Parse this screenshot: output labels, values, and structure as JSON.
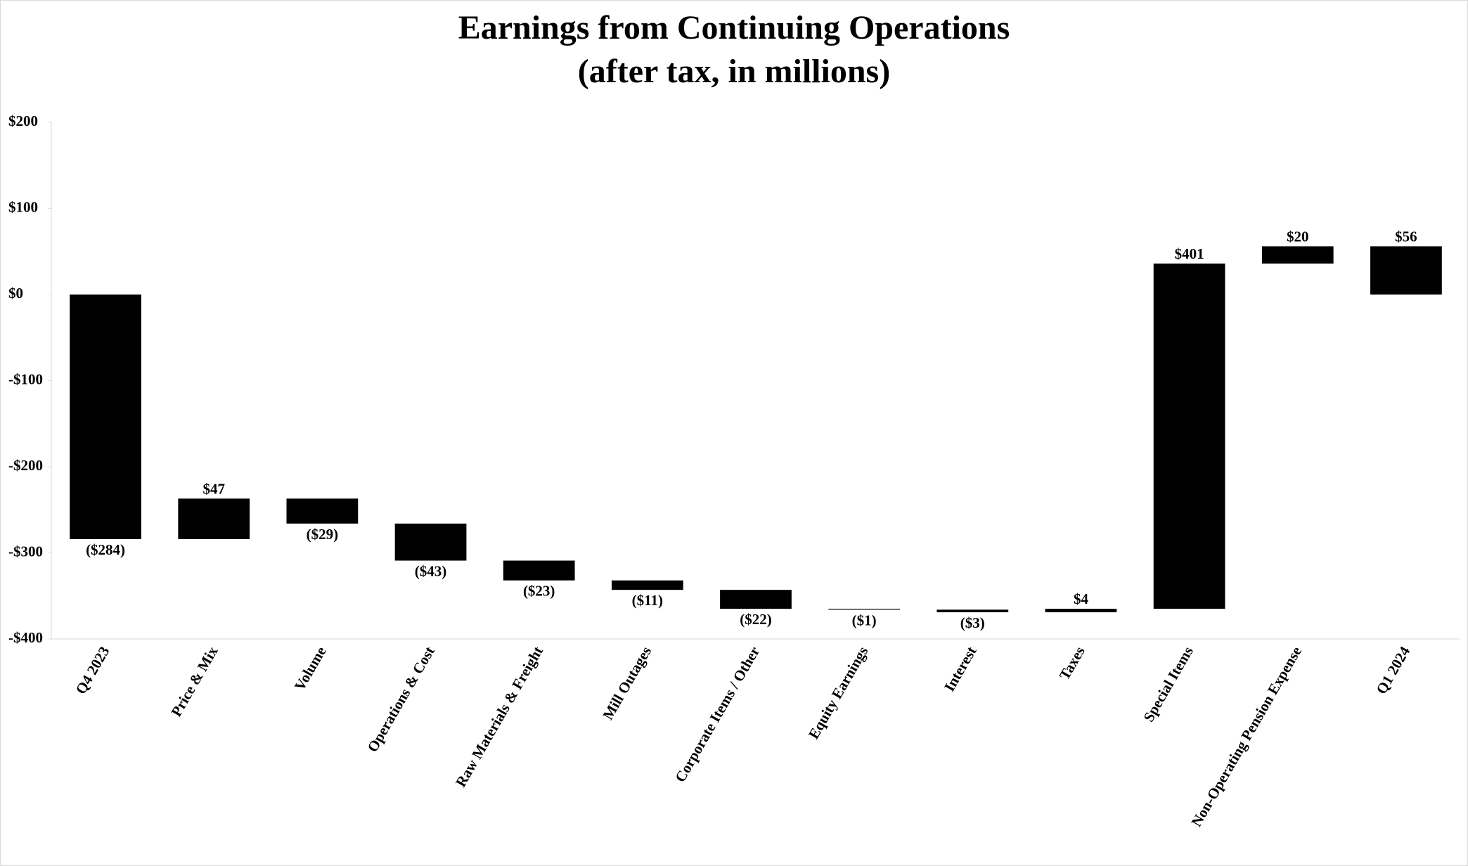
{
  "chart_data": {
    "type": "waterfall",
    "title": "Earnings from Continuing Operations",
    "subtitle": "(after tax, in millions)",
    "categories": [
      "Q4 2023",
      "Price & Mix",
      "Volume",
      "Operations & Cost",
      "Raw Materials & Freight",
      "Mill Outages",
      "Corporate Items / Other",
      "Equity Earnings",
      "Interest",
      "Taxes",
      "Special Items",
      "Non-Operating Pension Expense",
      "Q1 2024"
    ],
    "values": [
      -284,
      47,
      -29,
      -43,
      -23,
      -11,
      -22,
      -1,
      -3,
      4,
      401,
      20,
      56
    ],
    "value_labels": [
      "($284)",
      "$47",
      "($29)",
      "($43)",
      "($23)",
      "($11)",
      "($22)",
      "($1)",
      "($3)",
      "$4",
      "$401",
      "$20",
      "$56"
    ],
    "color": "#000000",
    "ylim": [
      -400,
      200
    ],
    "yticks": [
      {
        "value": -400,
        "label": "-$400"
      },
      {
        "value": -300,
        "label": "-$300"
      },
      {
        "value": -200,
        "label": "-$200"
      },
      {
        "value": -100,
        "label": "-$100"
      },
      {
        "value": 0,
        "label": "$0"
      },
      {
        "value": 100,
        "label": "$100"
      },
      {
        "value": 200,
        "label": "$200"
      }
    ],
    "grid": false
  }
}
